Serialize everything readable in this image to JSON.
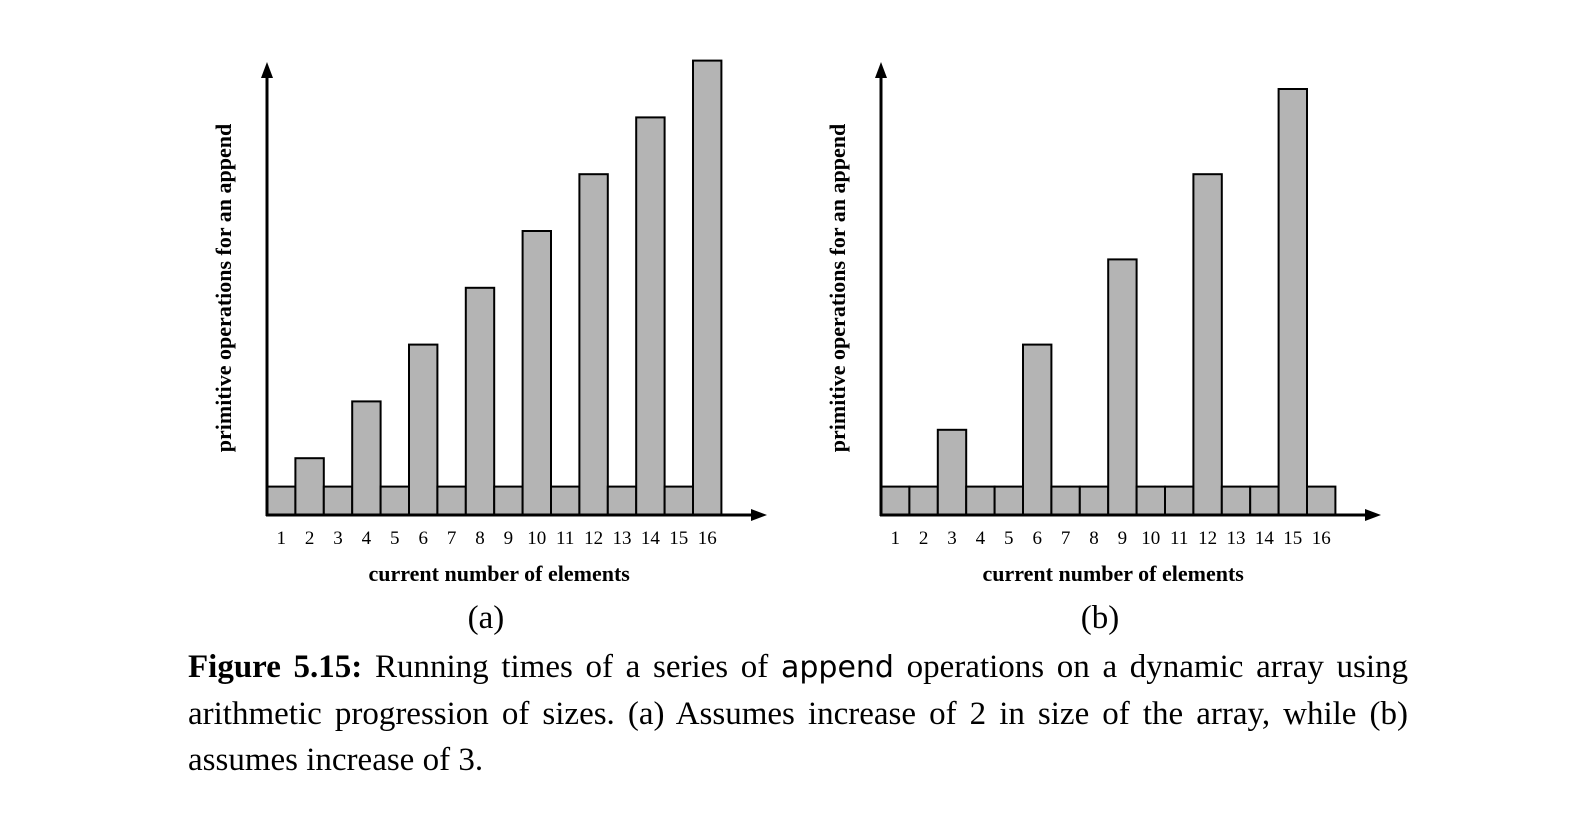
{
  "chart_data": [
    {
      "type": "bar",
      "panel_label": "(a)",
      "xlabel": "current number of elements",
      "ylabel": "primitive operations for an append",
      "categories": [
        "1",
        "2",
        "3",
        "4",
        "5",
        "6",
        "7",
        "8",
        "9",
        "10",
        "11",
        "12",
        "13",
        "14",
        "15",
        "16"
      ],
      "values": [
        1,
        2,
        1,
        4,
        1,
        6,
        1,
        8,
        1,
        10,
        1,
        12,
        1,
        14,
        1,
        16
      ],
      "ylim": [
        0,
        16.5
      ],
      "grid": false,
      "bar_color": "#b4b4b4"
    },
    {
      "type": "bar",
      "panel_label": "(b)",
      "xlabel": "current number of elements",
      "ylabel": "primitive operations for an append",
      "categories": [
        "1",
        "2",
        "3",
        "4",
        "5",
        "6",
        "7",
        "8",
        "9",
        "10",
        "11",
        "12",
        "13",
        "14",
        "15",
        "16"
      ],
      "values": [
        1,
        1,
        3,
        1,
        1,
        6,
        1,
        1,
        9,
        1,
        1,
        12,
        1,
        1,
        15,
        1
      ],
      "ylim": [
        0,
        16.5
      ],
      "grid": false,
      "bar_color": "#b4b4b4"
    }
  ],
  "caption": {
    "figure_number": "Figure 5.15:",
    "text_before_code": "Running times of a series of",
    "code_word": "append",
    "text_after_code": "operations on a dynamic array using arithmetic progression of sizes.  (a) Assumes increase of 2 in size of the array, while (b) assumes increase of 3."
  }
}
